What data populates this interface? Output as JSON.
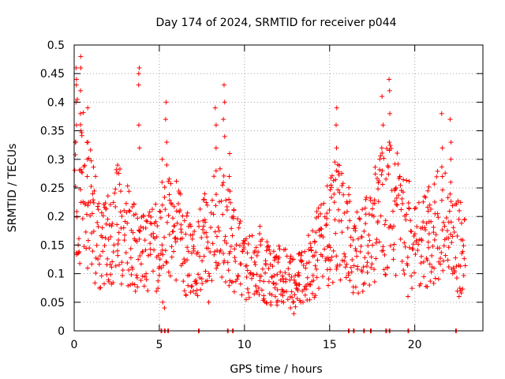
{
  "chart_data": {
    "type": "scatter",
    "title": "Day 174 of 2024, SRMTID for receiver p044",
    "xlabel": "GPS time / hours",
    "ylabel": "SRMTID / TECUs",
    "xlim": [
      0,
      24
    ],
    "ylim": [
      0,
      0.5
    ],
    "grid": true,
    "marker": "+",
    "color": "#ff0000",
    "x_ticks": [
      0,
      5,
      10,
      15,
      20
    ],
    "x_tick_labels": [
      "0",
      "5",
      "10",
      "15",
      "20"
    ],
    "y_ticks": [
      0,
      0.05,
      0.1,
      0.15,
      0.2,
      0.25,
      0.3,
      0.35,
      0.4,
      0.45,
      0.5
    ],
    "y_tick_labels": [
      "0",
      "0.05",
      "0.1",
      "0.15",
      "0.2",
      "0.25",
      "0.3",
      "0.35",
      "0.4",
      "0.45",
      "0.5"
    ],
    "trend": [
      [
        0.0,
        0.27
      ],
      [
        0.5,
        0.25
      ],
      [
        1.0,
        0.2
      ],
      [
        1.5,
        0.15
      ],
      [
        2.0,
        0.16
      ],
      [
        2.5,
        0.19
      ],
      [
        3.0,
        0.17
      ],
      [
        3.5,
        0.15
      ],
      [
        4.0,
        0.13
      ],
      [
        4.5,
        0.14
      ],
      [
        5.0,
        0.16
      ],
      [
        5.5,
        0.19
      ],
      [
        6.0,
        0.17
      ],
      [
        6.5,
        0.14
      ],
      [
        7.0,
        0.12
      ],
      [
        7.5,
        0.15
      ],
      [
        8.0,
        0.17
      ],
      [
        8.5,
        0.21
      ],
      [
        9.0,
        0.18
      ],
      [
        9.5,
        0.14
      ],
      [
        10.0,
        0.11
      ],
      [
        10.5,
        0.11
      ],
      [
        11.0,
        0.12
      ],
      [
        11.5,
        0.1
      ],
      [
        12.0,
        0.1
      ],
      [
        12.5,
        0.1
      ],
      [
        13.0,
        0.09
      ],
      [
        13.5,
        0.1
      ],
      [
        14.0,
        0.12
      ],
      [
        14.5,
        0.15
      ],
      [
        15.0,
        0.18
      ],
      [
        15.5,
        0.2
      ],
      [
        16.0,
        0.17
      ],
      [
        16.5,
        0.14
      ],
      [
        17.0,
        0.14
      ],
      [
        17.5,
        0.18
      ],
      [
        18.0,
        0.21
      ],
      [
        18.5,
        0.22
      ],
      [
        19.0,
        0.2
      ],
      [
        19.5,
        0.18
      ],
      [
        20.0,
        0.15
      ],
      [
        20.5,
        0.15
      ],
      [
        21.0,
        0.17
      ],
      [
        21.5,
        0.2
      ],
      [
        22.0,
        0.17
      ],
      [
        22.5,
        0.15
      ],
      [
        23.0,
        0.14
      ]
    ],
    "spikes": [
      {
        "x": 0.1,
        "values": [
          0.46,
          0.44,
          0.43,
          0.4,
          0.36,
          0.33
        ]
      },
      {
        "x": 0.4,
        "values": [
          0.48,
          0.46,
          0.42,
          0.38,
          0.35
        ]
      },
      {
        "x": 0.8,
        "values": [
          0.39,
          0.33,
          0.3,
          0.27
        ]
      },
      {
        "x": 3.8,
        "values": [
          0.46,
          0.45,
          0.43,
          0.36,
          0.32
        ]
      },
      {
        "x": 5.2,
        "values": [
          0.3,
          0.26,
          0.22
        ]
      },
      {
        "x": 5.4,
        "values": [
          0.4,
          0.37,
          0.33,
          0.29
        ]
      },
      {
        "x": 8.3,
        "values": [
          0.39,
          0.36,
          0.32,
          0.28
        ]
      },
      {
        "x": 8.8,
        "values": [
          0.43,
          0.4,
          0.37,
          0.34
        ]
      },
      {
        "x": 9.1,
        "values": [
          0.31,
          0.27,
          0.23
        ]
      },
      {
        "x": 15.4,
        "values": [
          0.39,
          0.36,
          0.32,
          0.28
        ]
      },
      {
        "x": 18.1,
        "values": [
          0.41,
          0.36,
          0.32,
          0.28
        ]
      },
      {
        "x": 18.5,
        "values": [
          0.44,
          0.42,
          0.38,
          0.33
        ]
      },
      {
        "x": 21.6,
        "values": [
          0.38,
          0.32,
          0.27
        ]
      },
      {
        "x": 22.1,
        "values": [
          0.37,
          0.33,
          0.3,
          0.26
        ]
      }
    ],
    "low_points": [
      [
        5.2,
        0.05
      ],
      [
        5.3,
        0.04
      ],
      [
        7.0,
        0.07
      ],
      [
        7.9,
        0.05
      ],
      [
        11.9,
        0.05
      ],
      [
        12.3,
        0.05
      ],
      [
        12.7,
        0.04
      ],
      [
        12.9,
        0.03
      ],
      [
        13.3,
        0.05
      ],
      [
        19.6,
        0.06
      ],
      [
        22.6,
        0.06
      ],
      [
        22.7,
        0.07
      ]
    ],
    "zero_points": [
      5.1,
      5.3,
      5.5,
      7.3,
      9.0,
      9.3,
      16.1,
      16.4,
      17.0,
      17.4,
      18.3,
      18.5,
      19.6,
      22.4
    ]
  }
}
